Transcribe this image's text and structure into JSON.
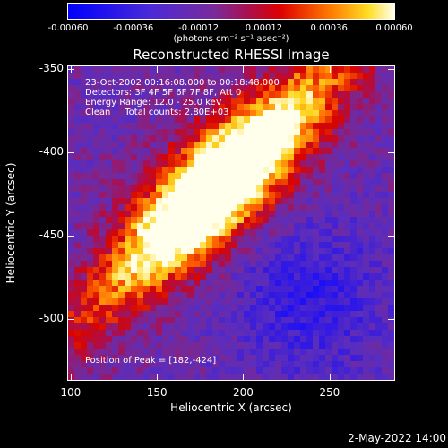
{
  "colorbar": {
    "tick_labels": [
      "-0.00060",
      "-0.00036",
      "-0.00012",
      "0.00012",
      "0.00036",
      "0.00060"
    ],
    "units_label": "(photons cm⁻² s⁻¹ asec⁻²)"
  },
  "plot": {
    "title": "Reconstructed RHESSI Image",
    "info_lines": [
      "23-Oct-2002 00:16:08.000 to 00:18:48.000",
      "Detectors: 3F 4F 5F 6F 7F 8F, Att 0",
      "Energy Range: 12.0 - 25.0 keV",
      "Clean     Total counts: 2.80E+03"
    ],
    "peak_label": "Position of Peak = [182,-424]"
  },
  "axes": {
    "x_title": "Heliocentric X (arcsec)",
    "y_title": "Heliocentric Y (arcsec)",
    "x_ticks": [
      "100",
      "150",
      "200",
      "250"
    ],
    "y_ticks": [
      "-350",
      "-400",
      "-450",
      "-500"
    ]
  },
  "footer": {
    "datestamp": "2-May-2022 14:00"
  },
  "chart_data": {
    "type": "heatmap",
    "title": "Reconstructed RHESSI Image",
    "xlabel": "Heliocentric X (arcsec)",
    "ylabel": "Heliocentric Y (arcsec)",
    "xlim": [
      98,
      288
    ],
    "ylim": [
      -537,
      -348
    ],
    "value_range": [
      -0.0006,
      0.0006
    ],
    "colormap": "blue-purple-red-orange-yellow-white",
    "peak_position": [
      182,
      -424
    ],
    "source_center": [
      185,
      -420
    ],
    "colors": {
      "low": "#0000ff",
      "mid_low": "#6a2fc8",
      "mid": "#cc0000",
      "mid_high": "#ff8800",
      "high": "#ffffee"
    }
  }
}
